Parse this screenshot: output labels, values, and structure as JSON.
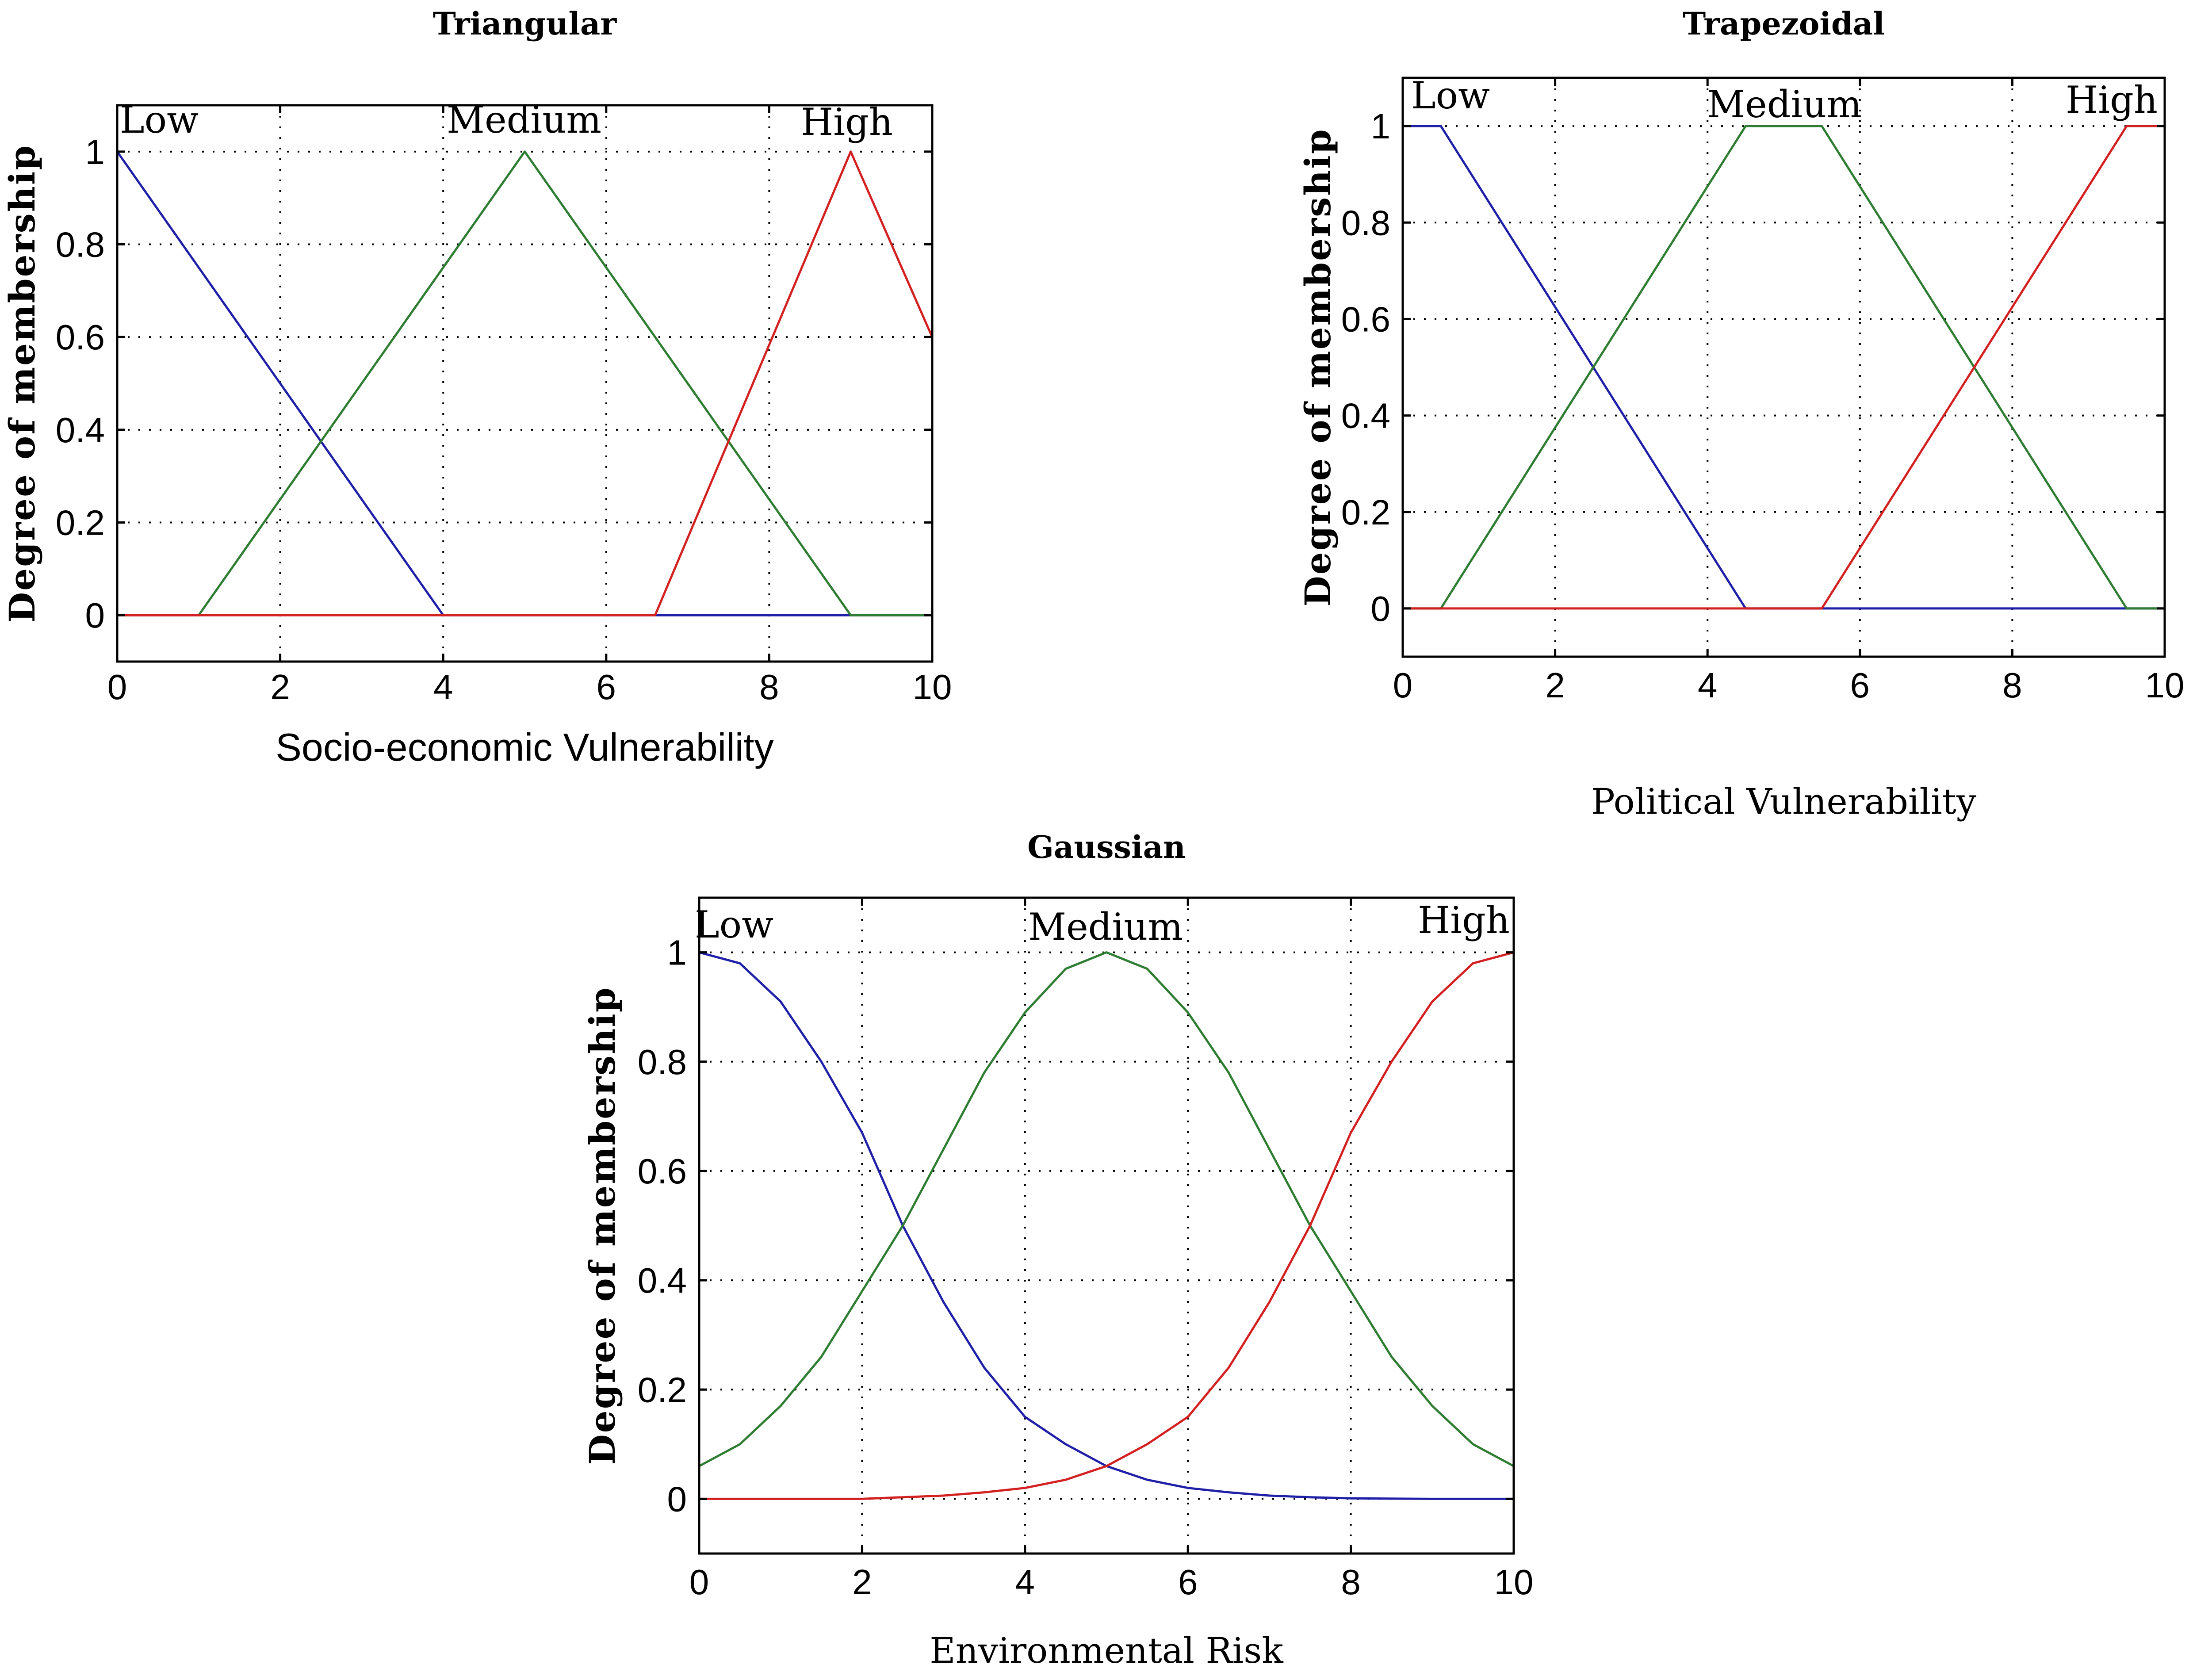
{
  "chart_data": [
    {
      "type": "line",
      "title": "Triangular",
      "xlabel": "Socio-economic Vulnerability",
      "ylabel": "Degree of membership",
      "xlim": [
        0,
        10
      ],
      "ylim": [
        -0.1,
        1.1
      ],
      "xticks": [
        "0",
        "2",
        "4",
        "6",
        "8",
        "10"
      ],
      "yticks": [
        "0",
        "0.2",
        "0.4",
        "0.6",
        "0.8",
        "1"
      ],
      "grid": true,
      "series": [
        {
          "name": "Low",
          "color": "#1f1fa8",
          "x": [
            0,
            4,
            10
          ],
          "y": [
            1,
            0,
            0
          ]
        },
        {
          "name": "Medium",
          "color": "#2e7d32",
          "x": [
            0,
            1,
            5,
            9,
            10
          ],
          "y": [
            0,
            0,
            1,
            0,
            0
          ]
        },
        {
          "name": "High",
          "color": "#d32020",
          "x": [
            0,
            6.6,
            9,
            10
          ],
          "y": [
            0,
            0,
            1,
            0.6
          ]
        }
      ]
    },
    {
      "type": "line",
      "title": "Trapezoidal",
      "xlabel": "Political Vulnerability",
      "ylabel": "Degree of membership",
      "xlim": [
        0,
        10
      ],
      "ylim": [
        -0.1,
        1.1
      ],
      "xticks": [
        "0",
        "2",
        "4",
        "6",
        "8",
        "10"
      ],
      "yticks": [
        "0",
        "0.2",
        "0.4",
        "0.6",
        "0.8",
        "1"
      ],
      "grid": true,
      "series": [
        {
          "name": "Low",
          "color": "#1f1fa8",
          "x": [
            0,
            0.5,
            4.5,
            10
          ],
          "y": [
            1,
            1,
            0,
            0
          ]
        },
        {
          "name": "Medium",
          "color": "#2e7d32",
          "x": [
            0,
            0.5,
            4.5,
            5.5,
            9.5,
            10
          ],
          "y": [
            0,
            0,
            1,
            1,
            0,
            0
          ]
        },
        {
          "name": "High",
          "color": "#d32020",
          "x": [
            0,
            5.5,
            9.5,
            10
          ],
          "y": [
            0,
            0,
            1,
            1
          ]
        }
      ]
    },
    {
      "type": "line",
      "title": "Gaussian",
      "xlabel": "Environmental Risk",
      "ylabel": "Degree of membership",
      "xlim": [
        0,
        10
      ],
      "ylim": [
        -0.1,
        1.1
      ],
      "xticks": [
        "0",
        "2",
        "4",
        "6",
        "8",
        "10"
      ],
      "yticks": [
        "0",
        "0.2",
        "0.4",
        "0.6",
        "0.8",
        "1"
      ],
      "grid": true,
      "series": [
        {
          "name": "Low",
          "color": "#1f1fa8",
          "x": [
            0,
            0.5,
            1,
            1.5,
            2,
            2.5,
            3,
            3.5,
            4,
            4.5,
            5,
            5.5,
            6,
            6.5,
            7,
            7.5,
            8,
            9,
            10
          ],
          "y": [
            1,
            0.98,
            0.91,
            0.8,
            0.67,
            0.5,
            0.36,
            0.24,
            0.15,
            0.1,
            0.06,
            0.035,
            0.02,
            0.012,
            0.006,
            0.003,
            0.001,
            0,
            0
          ]
        },
        {
          "name": "Medium",
          "color": "#2e7d32",
          "x": [
            0,
            0.5,
            1,
            1.5,
            2,
            2.5,
            3,
            3.5,
            4,
            4.5,
            5,
            5.5,
            6,
            6.5,
            7,
            7.5,
            8,
            8.5,
            9,
            9.5,
            10
          ],
          "y": [
            0.06,
            0.1,
            0.17,
            0.26,
            0.38,
            0.5,
            0.64,
            0.78,
            0.89,
            0.97,
            1,
            0.97,
            0.89,
            0.78,
            0.64,
            0.5,
            0.38,
            0.26,
            0.17,
            0.1,
            0.06
          ]
        },
        {
          "name": "High",
          "color": "#d32020",
          "x": [
            0,
            2,
            2.5,
            3,
            3.5,
            4,
            4.5,
            5,
            5.5,
            6,
            6.5,
            7,
            7.5,
            8,
            8.5,
            9,
            9.5,
            10
          ],
          "y": [
            0,
            0,
            0.003,
            0.006,
            0.012,
            0.02,
            0.035,
            0.06,
            0.1,
            0.15,
            0.24,
            0.36,
            0.5,
            0.67,
            0.8,
            0.91,
            0.98,
            1
          ]
        }
      ]
    }
  ]
}
